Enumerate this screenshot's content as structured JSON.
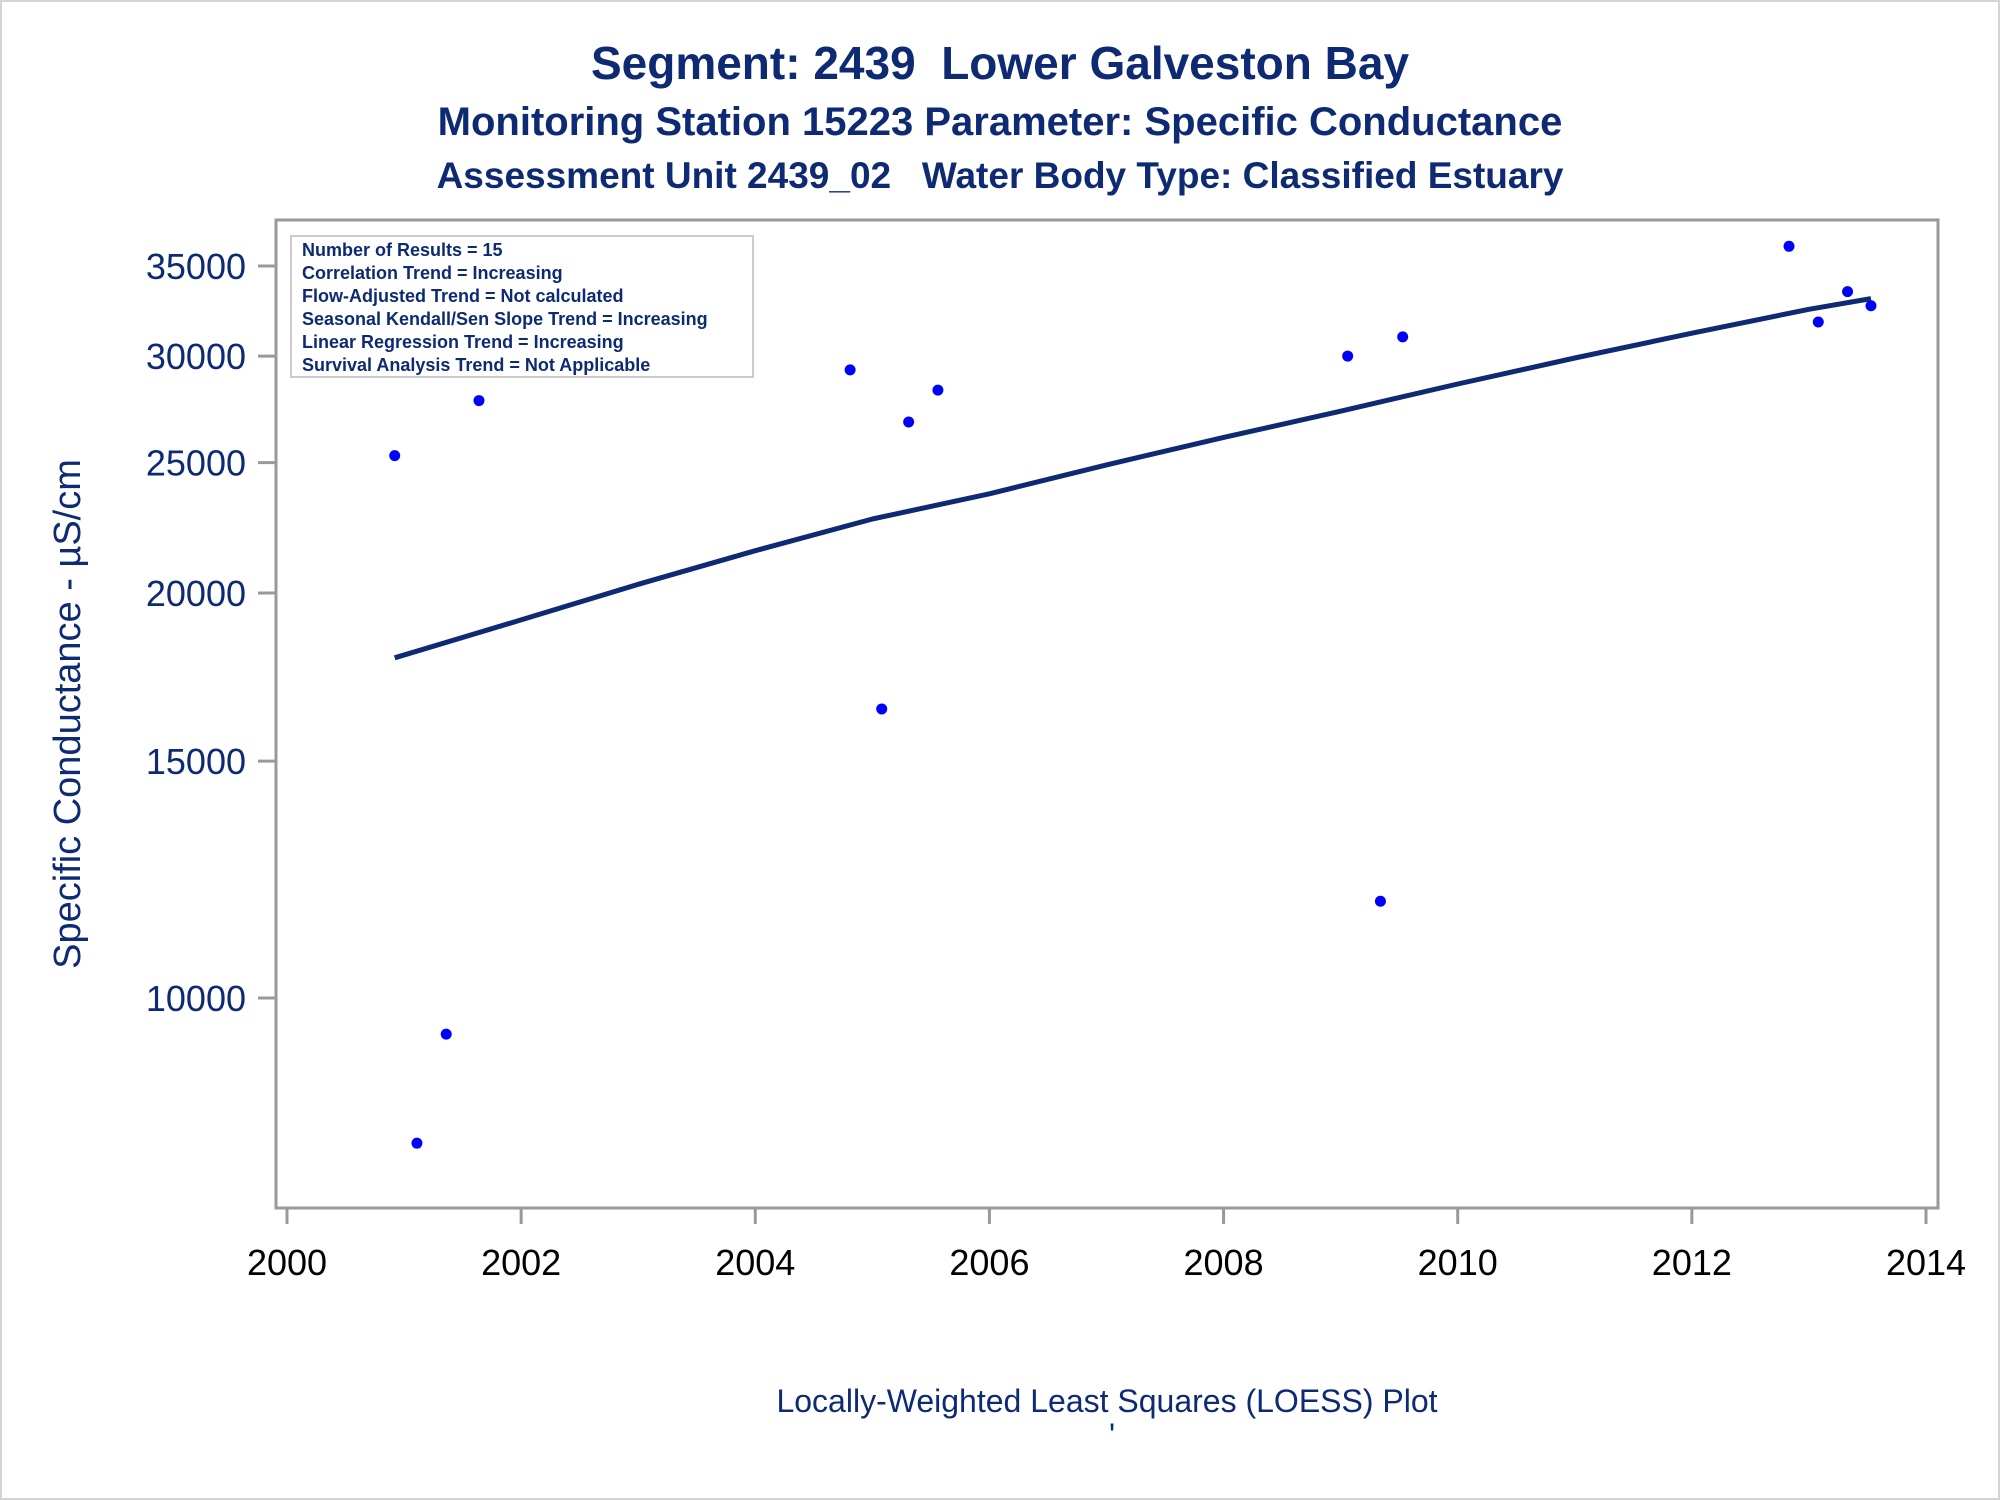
{
  "titles": {
    "line1": "Segment: 2439  Lower Galveston Bay",
    "line2": "Monitoring Station 15223 Parameter: Specific Conductance",
    "line3": "Assessment Unit 2439_02   Water Body Type: Classified Estuary"
  },
  "footer": {
    "text": "Locally-Weighted Least Squares (LOESS) Plot",
    "mark": "'"
  },
  "legend": {
    "lines": [
      "Number of Results = 15",
      "Correlation Trend = Increasing",
      "Flow-Adjusted Trend = Not calculated",
      "Seasonal Kendall/Sen Slope Trend = Increasing",
      "Linear Regression Trend = Increasing",
      "Survival Analysis Trend = Not Applicable"
    ]
  },
  "colors": {
    "points": "#0000ff",
    "trend_line": "#0d2a73",
    "text": "#0d2a73",
    "axis": "#999999"
  },
  "chart_data": {
    "type": "scatter",
    "xlabel": "",
    "ylabel": "Specific Conductance -  µS/cm",
    "x_ticks": [
      2000,
      2002,
      2004,
      2006,
      2008,
      2010,
      2012,
      2014
    ],
    "y_ticks": [
      10000,
      15000,
      20000,
      25000,
      30000,
      35000
    ],
    "xlim": [
      2000,
      2014.2
    ],
    "ylim": [
      7500,
      36500
    ],
    "y_scale": "log",
    "grid": false,
    "legend_position": "top-left",
    "points": [
      {
        "x": 2000.92,
        "y": 25300
      },
      {
        "x": 2001.11,
        "y": 7800
      },
      {
        "x": 2001.36,
        "y": 9400
      },
      {
        "x": 2001.64,
        "y": 27800
      },
      {
        "x": 2004.81,
        "y": 29300
      },
      {
        "x": 2005.08,
        "y": 16400
      },
      {
        "x": 2005.31,
        "y": 26800
      },
      {
        "x": 2005.56,
        "y": 28300
      },
      {
        "x": 2009.06,
        "y": 30000
      },
      {
        "x": 2009.34,
        "y": 11800
      },
      {
        "x": 2009.53,
        "y": 31000
      },
      {
        "x": 2012.83,
        "y": 36200
      },
      {
        "x": 2013.08,
        "y": 31800
      },
      {
        "x": 2013.33,
        "y": 33500
      },
      {
        "x": 2013.53,
        "y": 32700
      }
    ],
    "trend": {
      "x": [
        2000.92,
        2002.0,
        2003.0,
        2004.0,
        2005.0,
        2006.0,
        2007.0,
        2008.0,
        2009.0,
        2010.0,
        2011.0,
        2012.0,
        2013.0,
        2013.53
      ],
      "y": [
        17900,
        19100,
        20300,
        21500,
        22700,
        23700,
        24900,
        26100,
        27300,
        28600,
        29900,
        31200,
        32500,
        33100
      ]
    }
  }
}
